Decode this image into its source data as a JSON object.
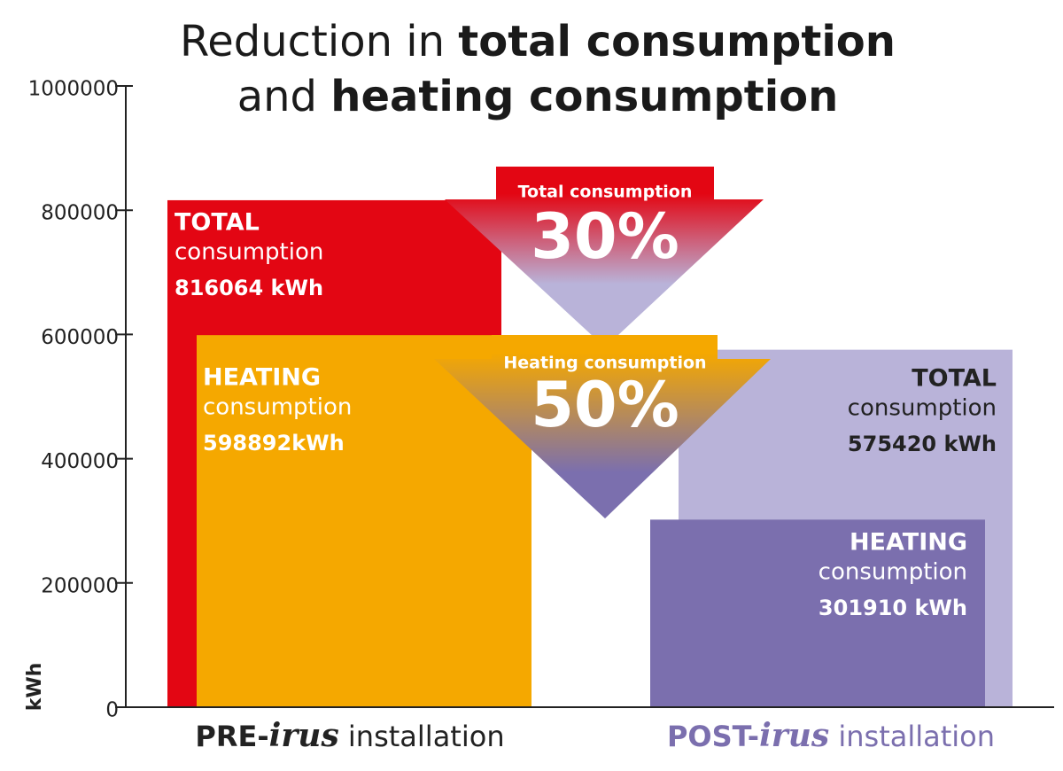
{
  "chart_data": {
    "type": "overlap-bar",
    "title": [
      [
        {
          "text": "Reduction in ",
          "bold": false
        },
        {
          "text": "total consumption",
          "bold": true
        }
      ],
      [
        {
          "text": "and ",
          "bold": false
        },
        {
          "text": "heating consumption",
          "bold": true
        }
      ]
    ],
    "y_label": "kWh",
    "ylim": [
      0,
      1000000
    ],
    "yticks": [
      0,
      200000,
      400000,
      600000,
      800000,
      1000000
    ],
    "categories": [
      [
        "PRE-",
        "irus",
        " installation"
      ],
      [
        "POST-",
        "irus",
        " installation"
      ]
    ],
    "category_colors": [
      "#222222",
      "#7b6fae"
    ],
    "series": [
      {
        "name": "TOTAL",
        "sub": "consumption",
        "values": [
          816064,
          575420
        ],
        "value_labels": [
          "816064 kWh",
          "575420 kWh"
        ],
        "colors": [
          "#e30613",
          "#b9b3d9"
        ],
        "label_colors": [
          "#ffffff",
          "#222222"
        ]
      },
      {
        "name": "HEATING",
        "sub": "consumption",
        "values": [
          598892,
          301910
        ],
        "value_labels": [
          "598892kWh",
          "301910 kWh"
        ],
        "colors": [
          "#f5a800",
          "#7b6fae"
        ],
        "label_colors": [
          "#ffffff",
          "#ffffff"
        ]
      }
    ],
    "reductions": [
      {
        "label": "Total consumption",
        "value": 30,
        "value_label": "30%"
      },
      {
        "label": "Heating consumption",
        "value": 50,
        "value_label": "50%"
      }
    ]
  }
}
